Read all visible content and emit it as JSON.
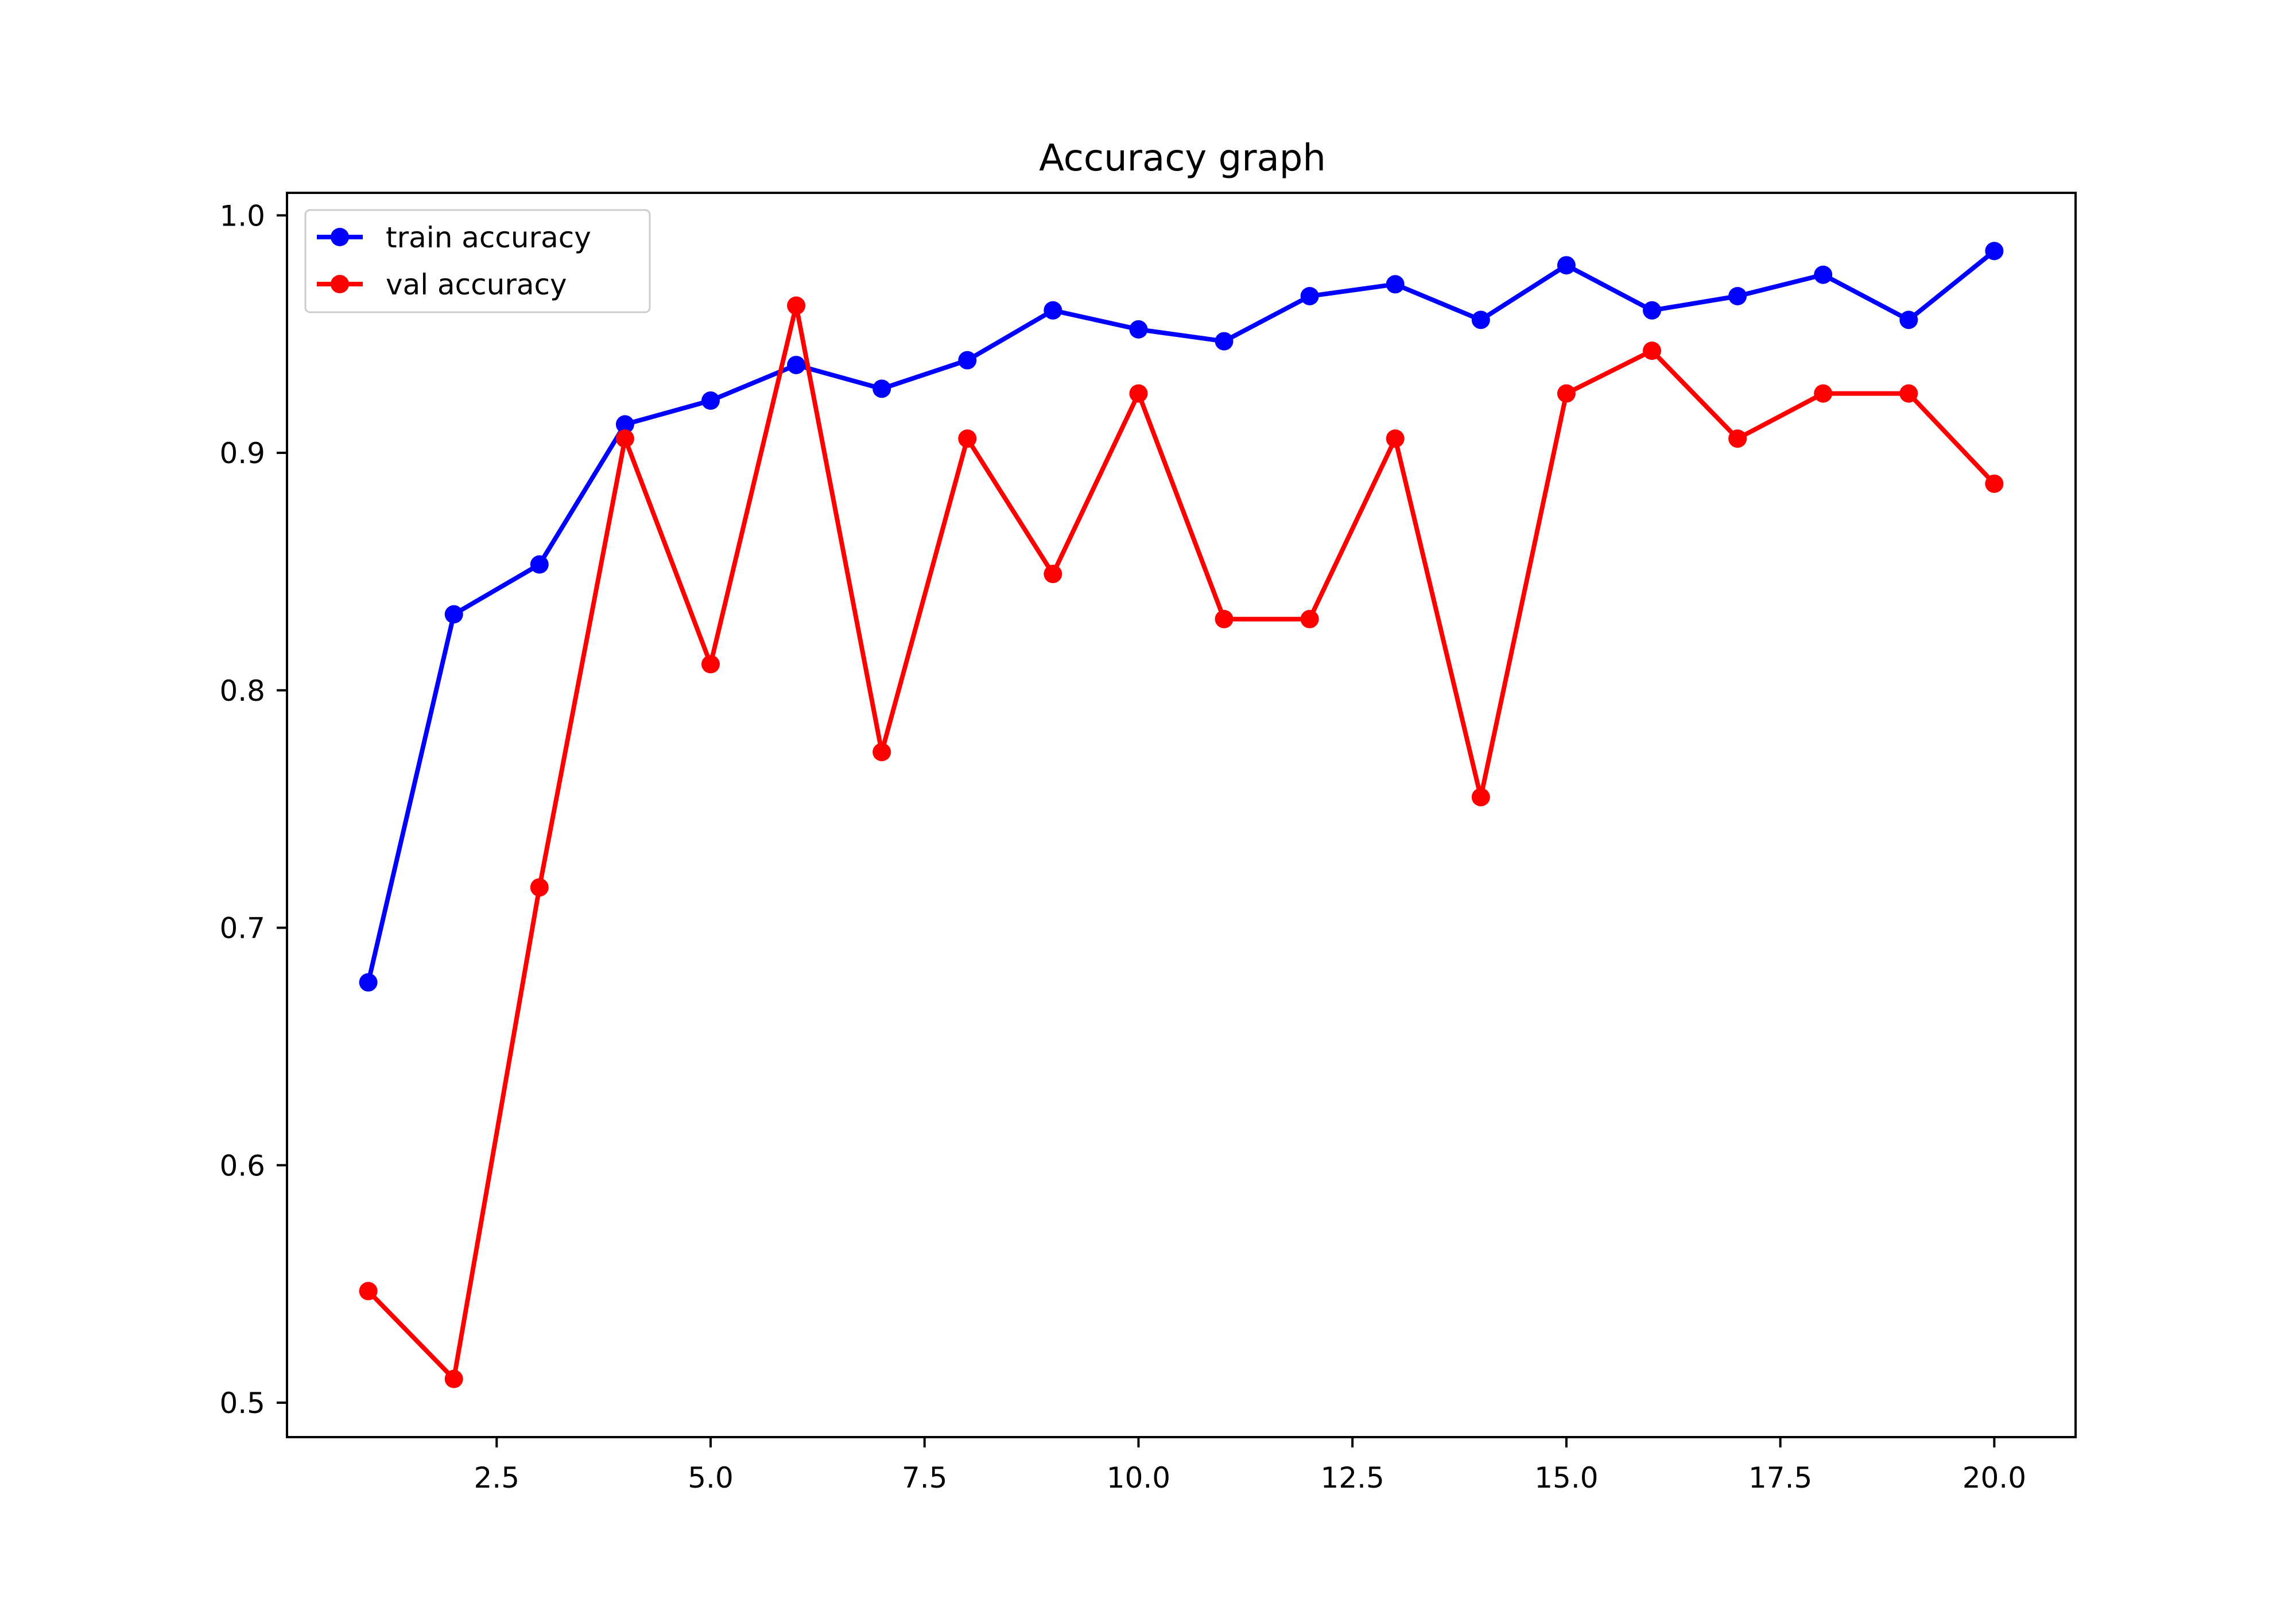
{
  "chart_data": {
    "type": "line",
    "title": "Accuracy graph",
    "xlabel": "",
    "ylabel": "",
    "xlim": [
      0.05,
      20.95
    ],
    "ylim": [
      0.4855,
      1.0095
    ],
    "xticks": [
      2.5,
      5.0,
      7.5,
      10.0,
      12.5,
      15.0,
      17.5,
      20.0
    ],
    "xtick_labels": [
      "2.5",
      "5.0",
      "7.5",
      "10.0",
      "12.5",
      "15.0",
      "17.5",
      "20.0"
    ],
    "yticks": [
      0.5,
      0.6,
      0.7,
      0.8,
      0.9,
      1.0
    ],
    "ytick_labels": [
      "0.5",
      "0.6",
      "0.7",
      "0.8",
      "0.9",
      "1.0"
    ],
    "grid": false,
    "legend_position": "top-left",
    "x": [
      1,
      2,
      3,
      4,
      5,
      6,
      7,
      8,
      9,
      10,
      11,
      12,
      13,
      14,
      15,
      16,
      17,
      18,
      19,
      20
    ],
    "series": [
      {
        "name": "train accuracy",
        "color": "#0000ff",
        "marker": "circle",
        "values": [
          0.677,
          0.832,
          0.853,
          0.912,
          0.922,
          0.937,
          0.927,
          0.939,
          0.96,
          0.952,
          0.947,
          0.966,
          0.971,
          0.956,
          0.979,
          0.96,
          0.966,
          0.975,
          0.956,
          0.985
        ]
      },
      {
        "name": "val accuracy",
        "color": "#ff0000",
        "marker": "circle",
        "values": [
          0.547,
          0.51,
          0.717,
          0.906,
          0.811,
          0.962,
          0.774,
          0.906,
          0.849,
          0.925,
          0.83,
          0.83,
          0.906,
          0.755,
          0.925,
          0.943,
          0.906,
          0.925,
          0.925,
          0.887
        ]
      }
    ]
  }
}
